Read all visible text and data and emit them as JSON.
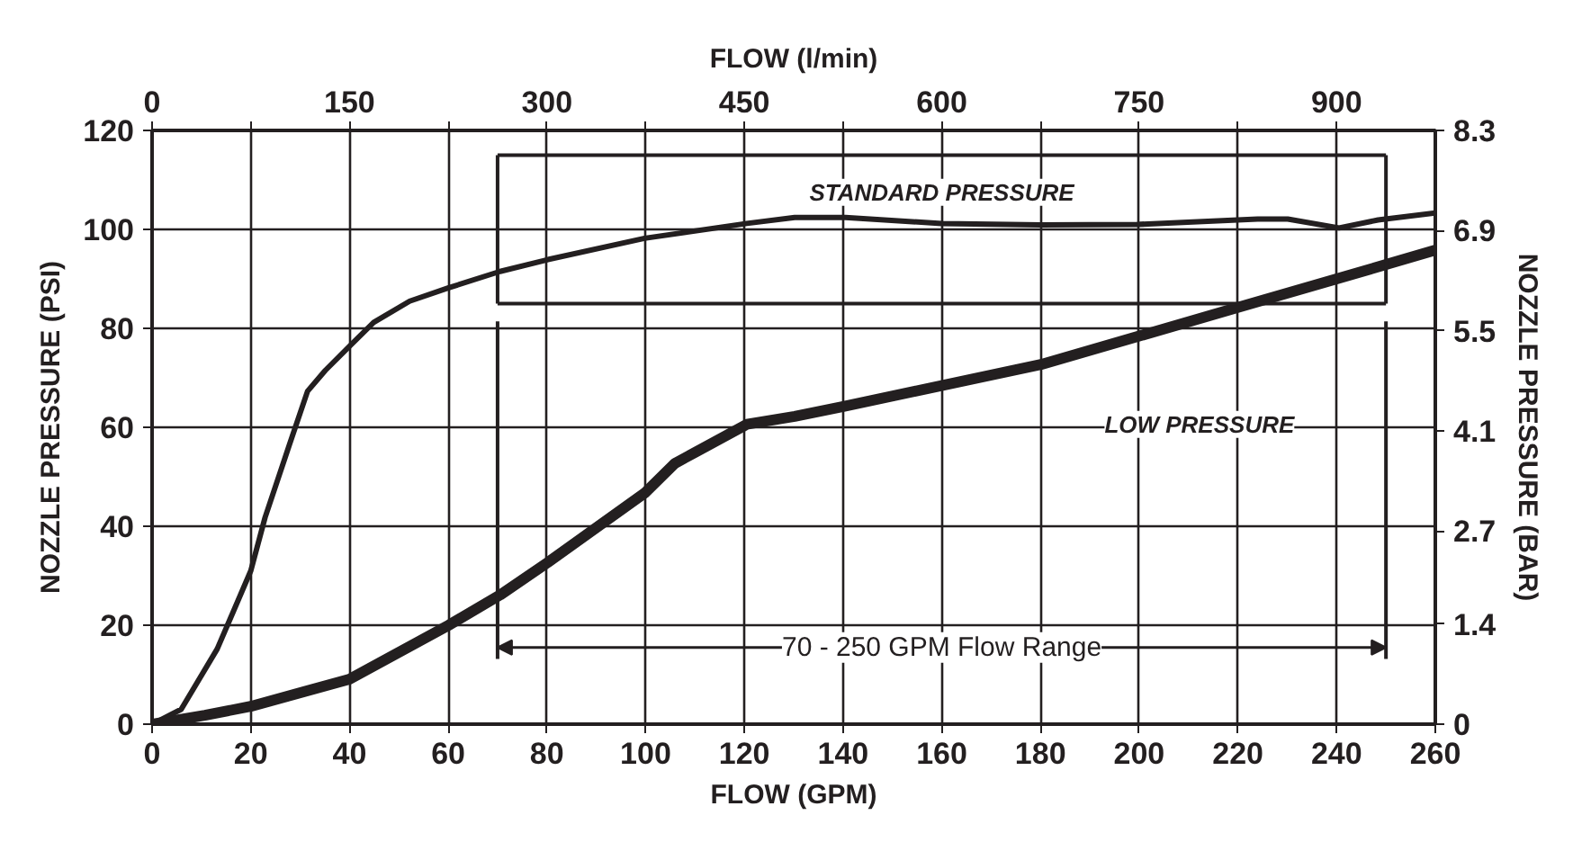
{
  "chart_data": {
    "type": "line",
    "xlabel": "FLOW (GPM)",
    "x2label": "FLOW (l/min)",
    "ylabel": "NOZZLE PRESSURE (PSI)",
    "y2label": "NOZZLE PRESSURE (BAR)",
    "xlim": [
      0,
      260
    ],
    "xticks": [
      0,
      20,
      40,
      60,
      80,
      100,
      120,
      140,
      160,
      180,
      200,
      220,
      240,
      260
    ],
    "x2lim": [
      0,
      975
    ],
    "x2ticks": [
      0,
      {
        "value": 75,
        "label": null
      },
      150,
      {
        "value": 225,
        "label": null
      },
      300,
      {
        "value": 375,
        "label": null
      },
      450,
      {
        "value": 525,
        "label": null
      },
      600,
      {
        "value": 675,
        "label": null
      },
      750,
      {
        "value": 825,
        "label": null
      },
      900
    ],
    "ylim": [
      0,
      120
    ],
    "yticks": [
      0,
      20,
      40,
      60,
      80,
      100,
      120
    ],
    "y2lim": [
      0,
      8.3
    ],
    "y2ticks": [
      0,
      1.4,
      2.7,
      4.1,
      5.5,
      6.9,
      8.3
    ],
    "grid": true,
    "marker": "none",
    "line_style": "solid",
    "series": [
      {
        "color": "#231f20",
        "x": [
          0,
          5.9,
          13.2,
          20,
          22.9,
          27.8,
          31.5,
          35.1,
          40,
          44.9,
          52.2,
          60.1,
          70.5,
          80.2,
          99.8,
          120.5,
          130.2,
          140.5,
          160,
          180.1,
          199.6,
          224,
          230.1,
          240.5,
          248.4,
          260
        ],
        "values": [
          0,
          3,
          15.2,
          31,
          41.8,
          56.4,
          67.3,
          71.5,
          76.4,
          81.2,
          85.5,
          88.2,
          91.5,
          93.9,
          98.2,
          101.2,
          102.4,
          102.4,
          101.2,
          100.9,
          101,
          102.1,
          102.1,
          100.3,
          101.9,
          103.3
        ]
      },
      {
        "color": "#231f20",
        "x": [
          0,
          10.7,
          20,
          40,
          60.1,
          70.5,
          80.2,
          99.8,
          105.9,
          120.5,
          130.2,
          140.5,
          180.1,
          220.3,
          260
        ],
        "values": [
          0,
          1.8,
          3.6,
          9.1,
          20,
          26.1,
          32.7,
          46.7,
          52.7,
          60.6,
          62.2,
          64.3,
          72.7,
          84.3,
          95.8
        ]
      }
    ],
    "ref_lines": [
      {
        "axis": "x",
        "value": 70,
        "color": "#231f20"
      },
      {
        "axis": "x",
        "value": 250,
        "color": "#231f20"
      },
      {
        "axis": "y",
        "value": 85,
        "color": "#231f20"
      },
      {
        "axis": "y",
        "value": 115,
        "color": "#231f20"
      }
    ],
    "annotations": [
      "STANDARD PRESSURE",
      "LOW PRESSURE",
      {
        "text": "70 - 250 GPM Flow Range",
        "x": 70,
        "y": 15.5
      }
    ]
  }
}
